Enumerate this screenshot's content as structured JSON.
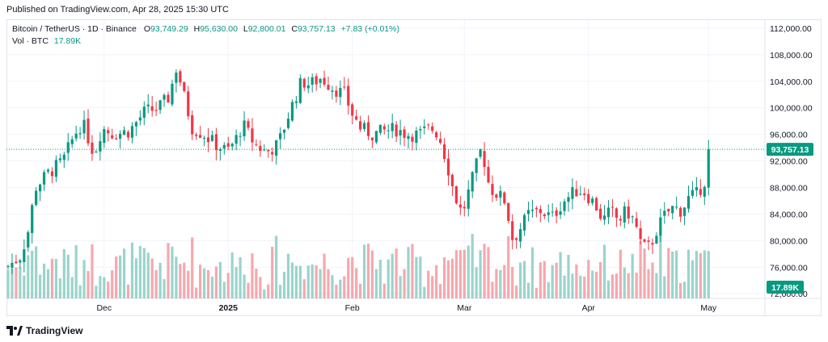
{
  "header": {
    "published": "Published on TradingView.com, Apr 28, 2025 15:30 UTC"
  },
  "legend": {
    "symbol": "Bitcoin / TetherUS · 1D · Binance",
    "o_label": "O",
    "o_value": "93,749.29",
    "h_label": "H",
    "h_value": "95,630.00",
    "l_label": "L",
    "l_value": "92,800.01",
    "c_label": "C",
    "c_value": "93,757.13",
    "change": "+7.83 (+0.01%)",
    "vol_label": "Vol · BTC",
    "vol_value": "17.89K"
  },
  "footer": {
    "brand": "TradingView",
    "logo_icon": "tradingview-logo-icon"
  },
  "colors": {
    "up": "#089981",
    "down": "#f23645",
    "up_vol": "#9ad4cc",
    "down_vol": "#f5a8ae",
    "grid": "#f0f3fa",
    "axis_text": "#131722"
  },
  "chart_data": {
    "type": "candlestick",
    "symbol": "BTCUSDT",
    "interval": "1D",
    "price_axis": {
      "ticks": [
        "112,000.00",
        "108,000.00",
        "104,000.00",
        "100,000.00",
        "96,000.00",
        "92,000.00",
        "88,000.00",
        "84,000.00",
        "80,000.00",
        "76,000.00",
        "72,000.00"
      ],
      "ylim": [
        71300,
        113200
      ]
    },
    "time_axis": {
      "ticks": [
        {
          "label": "Dec",
          "index": 24,
          "bold": false
        },
        {
          "label": "2025",
          "index": 55,
          "bold": true
        },
        {
          "label": "Feb",
          "index": 86,
          "bold": false
        },
        {
          "label": "Mar",
          "index": 114,
          "bold": false
        },
        {
          "label": "Apr",
          "index": 145,
          "bold": false
        },
        {
          "label": "May",
          "index": 175,
          "bold": false
        }
      ]
    },
    "last_price_label": "93,757.13",
    "last_price": 93757.13,
    "volume_label": "17.89K",
    "grid": true,
    "series": []
  }
}
